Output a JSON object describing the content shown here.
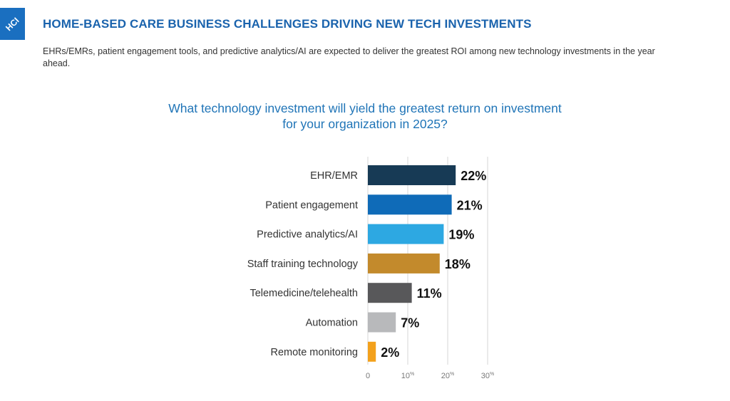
{
  "logo": {
    "text": "HCI",
    "color": "#1a6fc0"
  },
  "header": {
    "title": "HOME-BASED CARE BUSINESS CHALLENGES DRIVING NEW TECH INVESTMENTS",
    "subtitle": "EHRs/EMRs, patient engagement tools, and predictive analytics/AI are expected to deliver the greatest ROI among new technology investments in the year ahead."
  },
  "chart_data": {
    "type": "bar",
    "orientation": "horizontal",
    "title_line1": "What technology investment will yield the greatest return on investment",
    "title_line2": "for your organization in 2025?",
    "categories": [
      "EHR/EMR",
      "Patient engagement",
      "Predictive analytics/AI",
      "Staff training technology",
      "Telemedicine/telehealth",
      "Automation",
      "Remote monitoring"
    ],
    "values": [
      22,
      21,
      19,
      18,
      11,
      7,
      2
    ],
    "value_labels": [
      "22%",
      "21%",
      "19%",
      "18%",
      "11%",
      "7%",
      "2%"
    ],
    "colors": [
      "#173a55",
      "#0f6bb8",
      "#2da8e2",
      "#c38a2c",
      "#58585a",
      "#b8b9bb",
      "#f3a11c"
    ],
    "xlim": [
      0,
      30
    ],
    "xticks": [
      0,
      10,
      20,
      30
    ],
    "xtick_labels": [
      "0",
      "10",
      "20",
      "30"
    ],
    "xtick_suffix": "%",
    "grid": true,
    "legend": "none"
  }
}
